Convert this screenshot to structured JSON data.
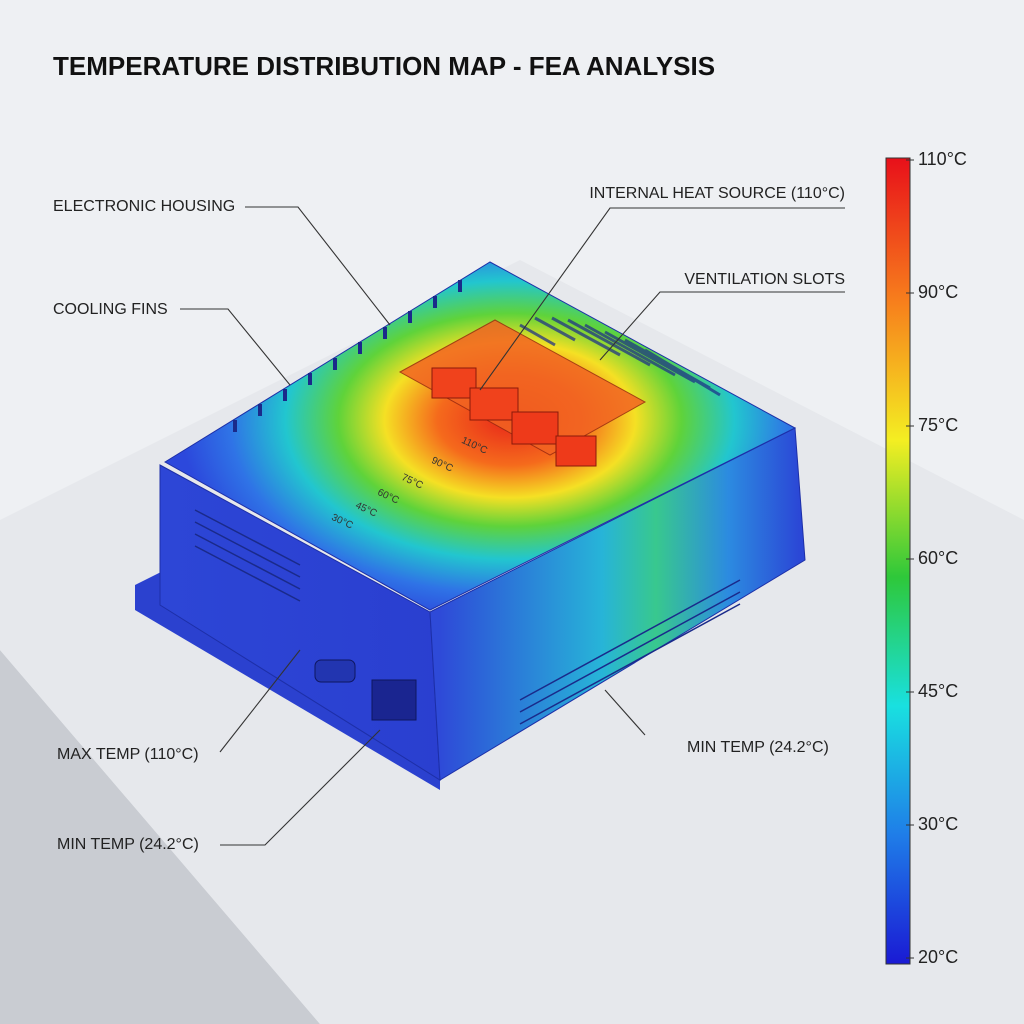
{
  "title": "TEMPERATURE DISTRIBUTION MAP - FEA ANALYSIS",
  "callouts": [
    {
      "label": "ELECTRONIC HOUSING"
    },
    {
      "label": "COOLING FINS"
    },
    {
      "label": "INTERNAL HEAT SOURCE (110°C)"
    },
    {
      "label": "VENTILATION SLOTS"
    },
    {
      "label": "MAX TEMP (110°C)"
    },
    {
      "label": "MIN TEMP (24.2°C)"
    },
    {
      "label": "MIN TEMP (24.2°C)"
    }
  ],
  "colorbar": {
    "ticks": [
      "110°C",
      "90°C",
      "75°C",
      "60°C",
      "45°C",
      "30°C",
      "20°C"
    ]
  },
  "contours": [
    "110°C",
    "90°C",
    "75°C",
    "60°C",
    "45°C",
    "30°C"
  ]
}
